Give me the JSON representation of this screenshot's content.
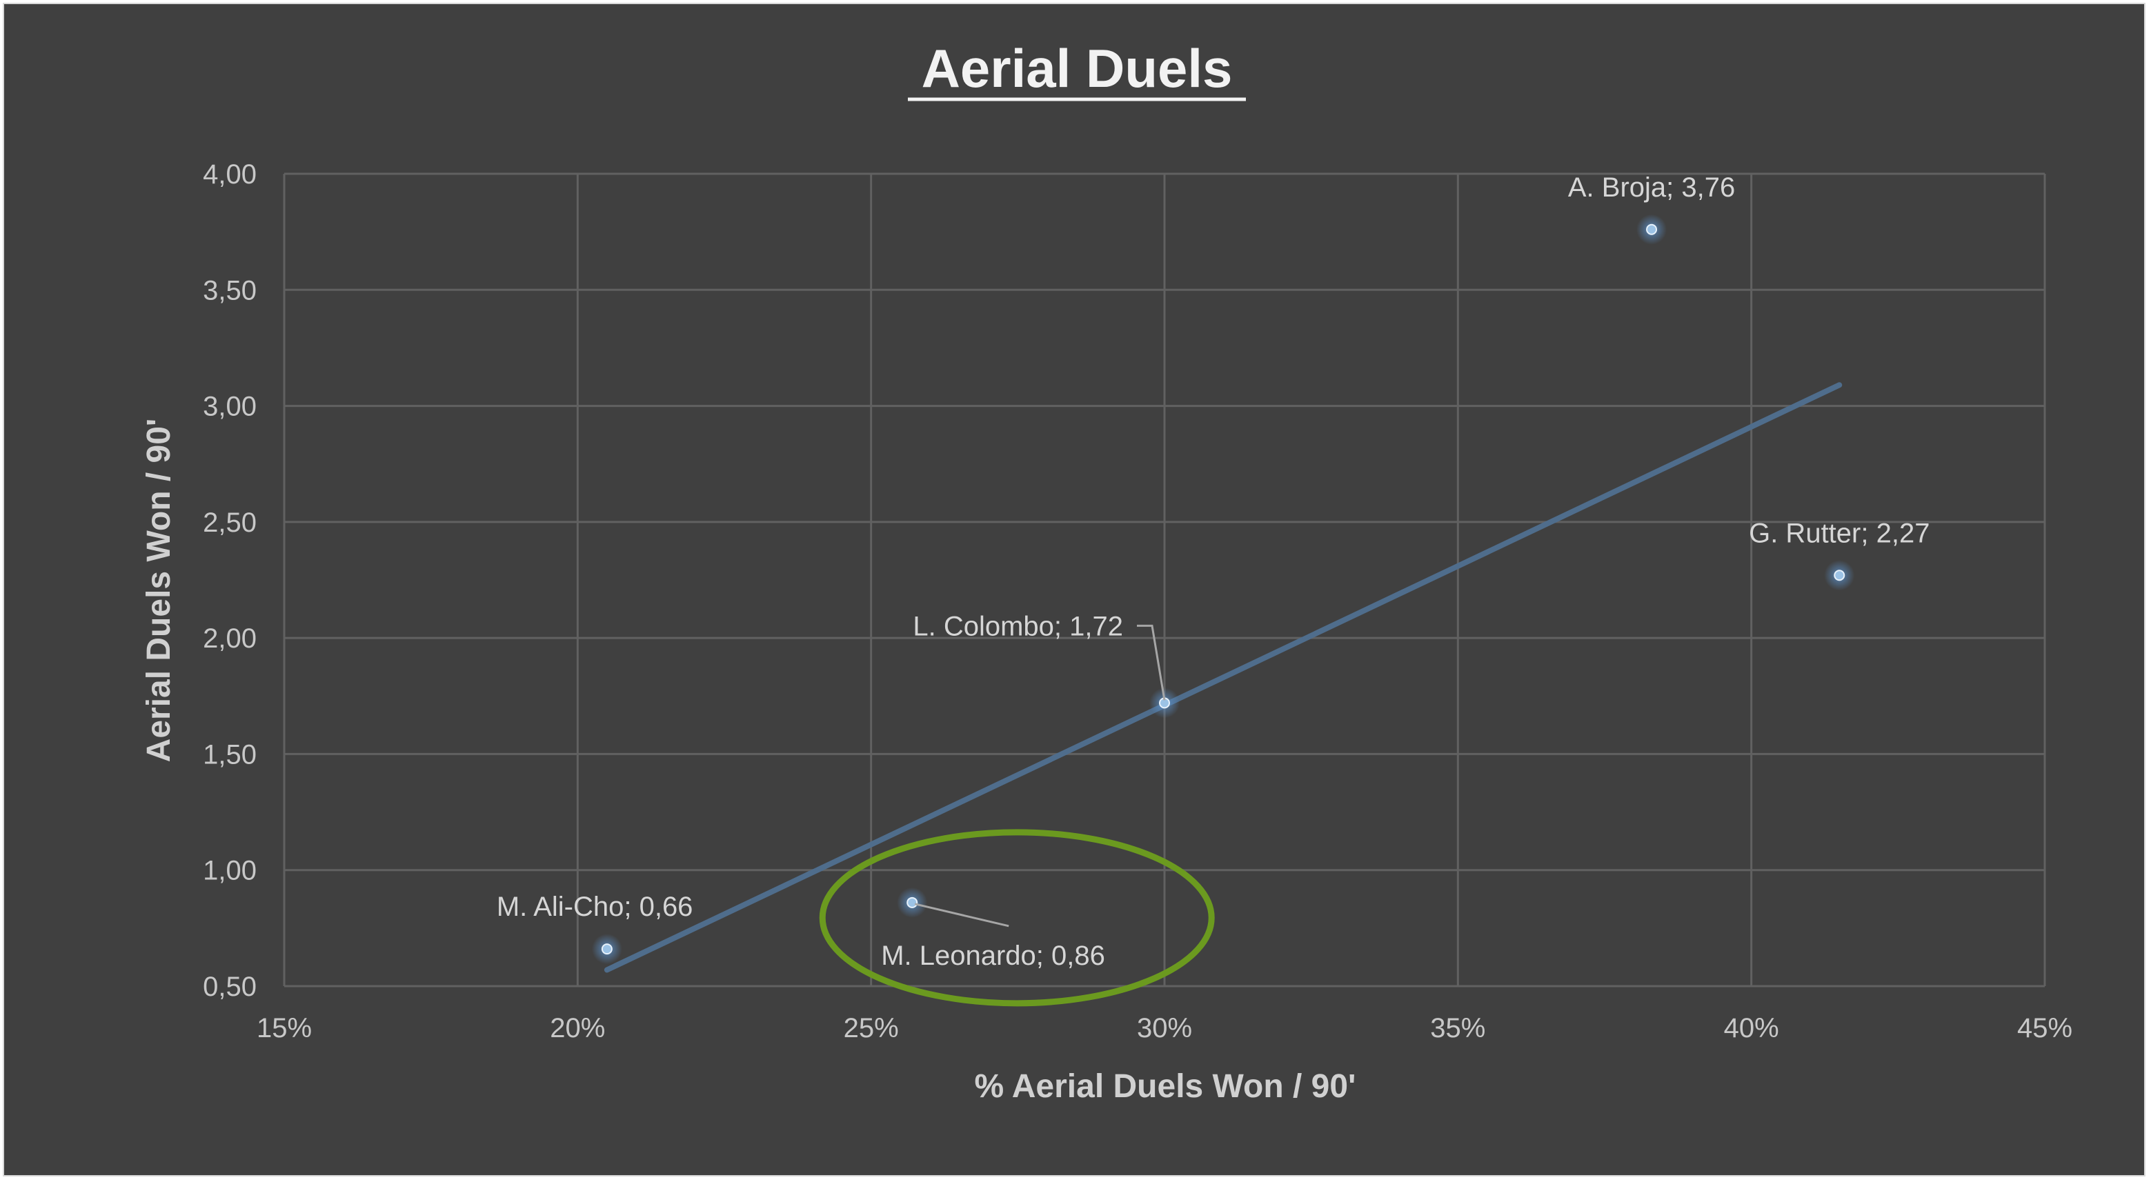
{
  "chart_data": {
    "type": "scatter",
    "title": "Aerial Duels",
    "xlabel": "%  Aerial Duels Won / 90'",
    "ylabel": "Aerial Duels Won / 90'",
    "xlim": [
      0.15,
      0.45
    ],
    "ylim": [
      0.5,
      4.0
    ],
    "x_ticks": [
      {
        "value": 0.15,
        "label": "15%"
      },
      {
        "value": 0.2,
        "label": "20%"
      },
      {
        "value": 0.25,
        "label": "25%"
      },
      {
        "value": 0.3,
        "label": "30%"
      },
      {
        "value": 0.35,
        "label": "35%"
      },
      {
        "value": 0.4,
        "label": "40%"
      },
      {
        "value": 0.45,
        "label": "45%"
      }
    ],
    "y_ticks": [
      {
        "value": 0.5,
        "label": "0,50"
      },
      {
        "value": 1.0,
        "label": "1,00"
      },
      {
        "value": 1.5,
        "label": "1,50"
      },
      {
        "value": 2.0,
        "label": "2,00"
      },
      {
        "value": 2.5,
        "label": "2,50"
      },
      {
        "value": 3.0,
        "label": "3,00"
      },
      {
        "value": 3.5,
        "label": "3,50"
      },
      {
        "value": 4.0,
        "label": "4,00"
      }
    ],
    "grid": true,
    "points": [
      {
        "x": 0.205,
        "y": 0.66,
        "label": "M. Ali-Cho; 0,66",
        "label_pos": "above-right"
      },
      {
        "x": 0.257,
        "y": 0.86,
        "label": "M. Leonardo; 0,86",
        "label_pos": "below-right-leader"
      },
      {
        "x": 0.3,
        "y": 1.72,
        "label": "L. Colombo; 1,72",
        "label_pos": "above-left-leader"
      },
      {
        "x": 0.383,
        "y": 3.76,
        "label": "A. Broja; 3,76",
        "label_pos": "above"
      },
      {
        "x": 0.415,
        "y": 2.27,
        "label": "G. Rutter; 2,27",
        "label_pos": "above"
      }
    ],
    "trendline": {
      "x": [
        0.205,
        0.415
      ],
      "y": [
        0.57,
        3.09
      ]
    },
    "colors": {
      "background": "#404040",
      "point": "#9cc3e6",
      "trendline": "#4f6d8c",
      "highlight_ellipse": "#6b9a1f"
    },
    "highlight": {
      "label": "M. Leonardo; 0,86"
    }
  }
}
